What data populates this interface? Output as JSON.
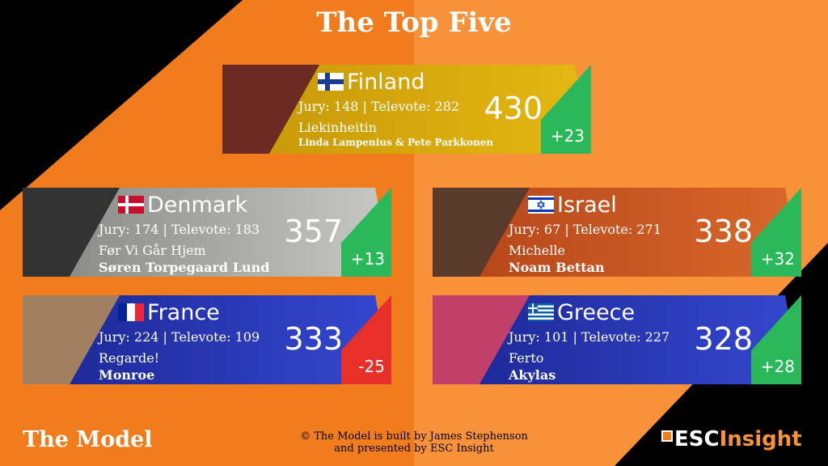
{
  "header": {
    "title": "The Top Five"
  },
  "labels": {
    "jury": "Jury:",
    "separator": "|",
    "televote": "Televote:"
  },
  "entries": [
    {
      "country": "Finland",
      "jury": 148,
      "televote": 282,
      "total": 430,
      "song": "Liekinheitin",
      "artist": "Linda Lampenius & Pete Parkkonen",
      "change": "+23"
    },
    {
      "country": "Denmark",
      "jury": 174,
      "televote": 183,
      "total": 357,
      "song": "Før Vi Går Hjem",
      "artist": "Søren Torpegaard Lund",
      "change": "+13"
    },
    {
      "country": "Israel",
      "jury": 67,
      "televote": 271,
      "total": 338,
      "song": "Michelle",
      "artist": "Noam Bettan",
      "change": "+32"
    },
    {
      "country": "France",
      "jury": 224,
      "televote": 109,
      "total": 333,
      "song": "Regarde!",
      "artist": "Monroe",
      "change": "-25"
    },
    {
      "country": "Greece",
      "jury": 101,
      "televote": 227,
      "total": 328,
      "song": "Ferto",
      "artist": "Akylas",
      "change": "+28"
    }
  ],
  "footer": {
    "left": "The Model",
    "credit_line1": "© The Model is built by James Stephenson",
    "credit_line2": "and presented by ESC Insight",
    "logo_part1": "ESC",
    "logo_part2": "Insight"
  }
}
